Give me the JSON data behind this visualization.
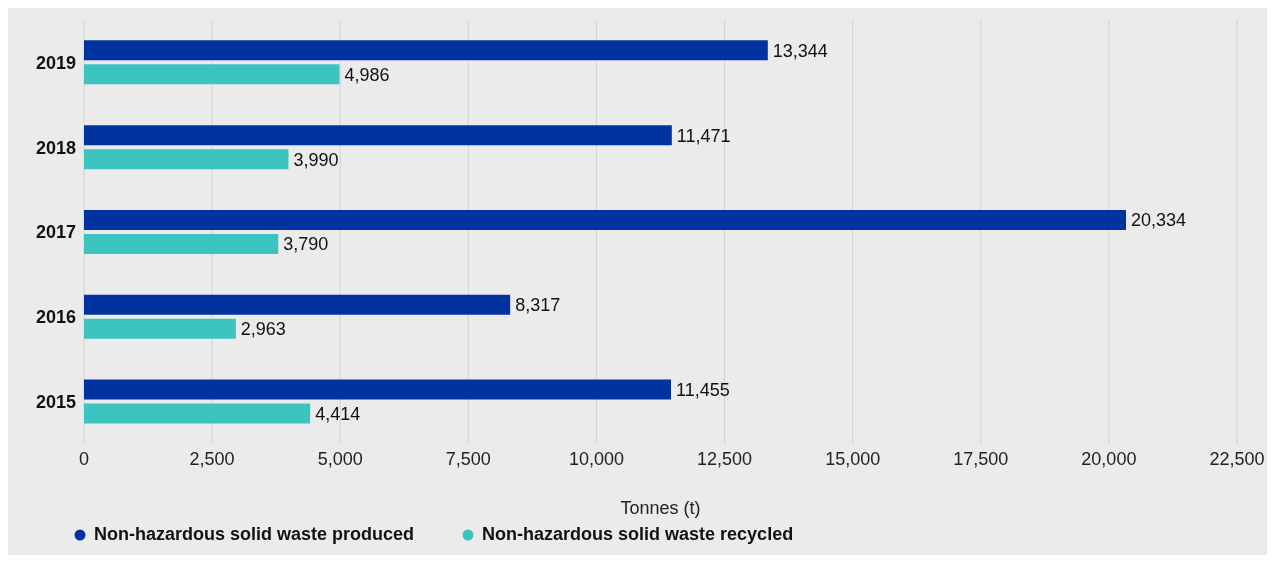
{
  "chart_data": {
    "type": "bar",
    "orientation": "horizontal",
    "xlabel": "Tonnes (t)",
    "categories": [
      "2019",
      "2018",
      "2017",
      "2016",
      "2015"
    ],
    "series": [
      {
        "name": "Non-hazardous solid waste produced",
        "color": "#0033a0",
        "values": [
          13344,
          11471,
          20334,
          8317,
          11455
        ],
        "value_labels": [
          "13,344",
          "11,471",
          "20,334",
          "8,317",
          "11,455"
        ]
      },
      {
        "name": "Non-hazardous solid waste recycled",
        "color": "#3cc4c0",
        "values": [
          4986,
          3990,
          3790,
          2963,
          4414
        ],
        "value_labels": [
          "4,986",
          "3,990",
          "3,790",
          "2,963",
          "4,414"
        ]
      }
    ],
    "xlim": [
      0,
      22500
    ],
    "xticks": [
      0,
      {
        "value": 2500,
        "label": "2,500"
      },
      {
        "value": 5000,
        "label": "5,000"
      },
      {
        "value": 7500,
        "label": "7,500"
      },
      {
        "value": 10000,
        "label": "10,000"
      },
      {
        "value": 12500,
        "label": "12,500"
      },
      {
        "value": 15000,
        "label": "15,000"
      },
      {
        "value": 17500,
        "label": "17,500"
      },
      {
        "value": 20000,
        "label": "20,000"
      },
      {
        "value": 22500,
        "label": "22,500"
      }
    ],
    "grid": "x",
    "legend": "bottom"
  }
}
